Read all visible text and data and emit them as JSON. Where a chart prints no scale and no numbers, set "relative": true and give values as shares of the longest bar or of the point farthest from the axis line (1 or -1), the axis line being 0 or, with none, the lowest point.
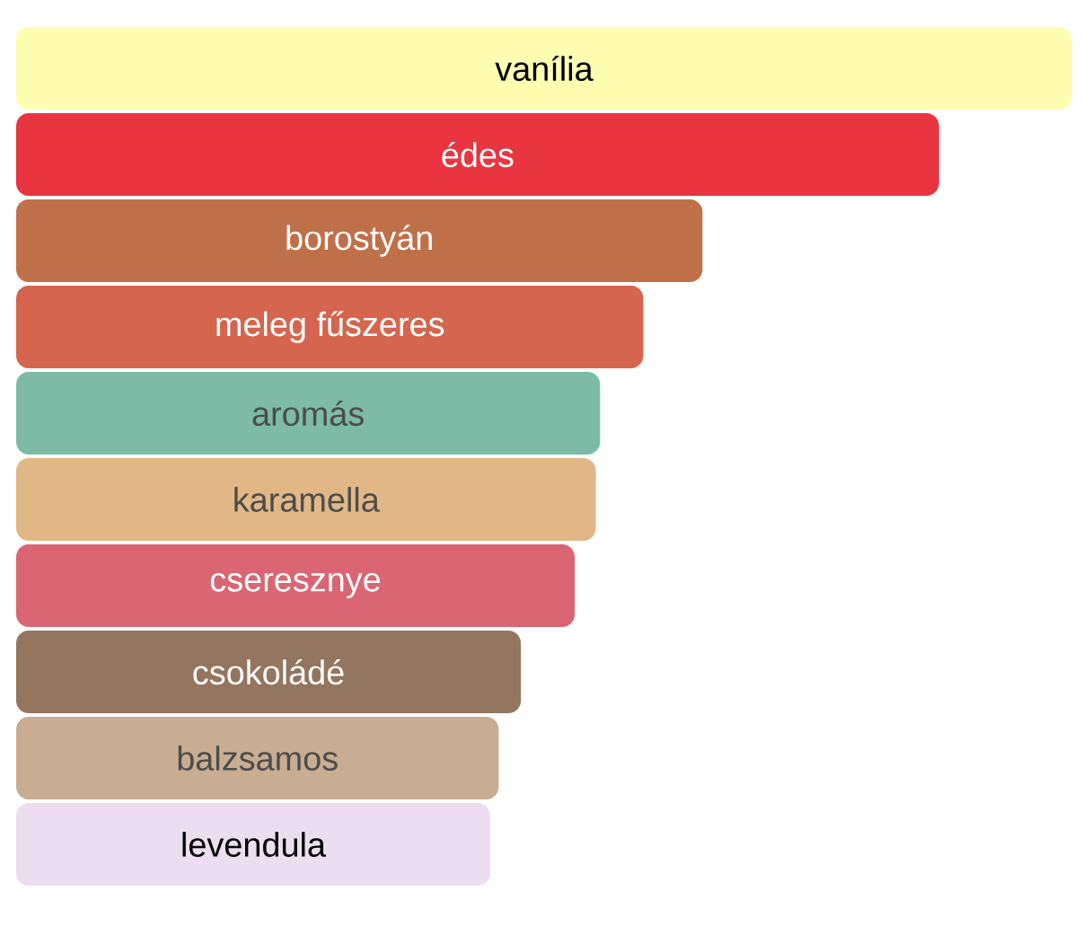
{
  "chart_data": {
    "type": "bar",
    "orientation": "horizontal",
    "relative": true,
    "categories": [
      "vanília",
      "édes",
      "borostyán",
      "meleg fűszeres",
      "aromás",
      "karamella",
      "cseresznye",
      "csokoládé",
      "balzsamos",
      "levendula"
    ],
    "values": [
      1,
      0.874,
      0.65,
      0.594,
      0.553,
      0.549,
      0.529,
      0.478,
      0.457,
      0.449
    ],
    "colors": [
      "#fffdb0",
      "#e83540",
      "#c07048",
      "#d5654f",
      "#7dbba6",
      "#e2b786",
      "#d96672",
      "#937560",
      "#c8ad93",
      "#ecddf0"
    ]
  }
}
